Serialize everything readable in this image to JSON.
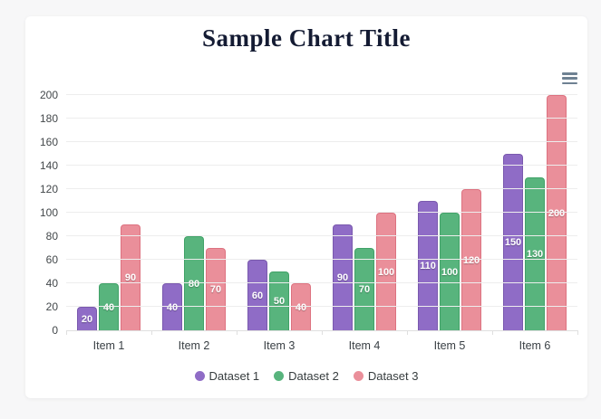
{
  "page": {
    "background_color": "#f7f7f8",
    "card_background_color": "#ffffff"
  },
  "toolbar": {
    "menu_icon": "hamburger-menu-icon",
    "menu_icon_color": "#6e8192"
  },
  "chart_data": {
    "type": "bar",
    "title": "Sample Chart Title",
    "title_color": "#141b33",
    "categories": [
      "Item 1",
      "Item 2",
      "Item 3",
      "Item 4",
      "Item 5",
      "Item 6"
    ],
    "series": [
      {
        "name": "Dataset 1",
        "color": "#8f6cc6",
        "border_color": "#7a59ae",
        "values": [
          20,
          40,
          60,
          90,
          110,
          150
        ]
      },
      {
        "name": "Dataset 2",
        "color": "#58b47d",
        "border_color": "#41a268",
        "values": [
          40,
          80,
          50,
          70,
          100,
          130
        ]
      },
      {
        "name": "Dataset 3",
        "color": "#ea8f9a",
        "border_color": "#dd7280",
        "values": [
          90,
          70,
          40,
          100,
          120,
          200
        ]
      }
    ],
    "ylim": [
      0,
      200
    ],
    "yticks": [
      0,
      20,
      40,
      60,
      80,
      100,
      120,
      140,
      160,
      180,
      200
    ],
    "grid": true,
    "grid_color": "#ededed",
    "data_labels": true,
    "data_label_color": "#ffffff",
    "legend_position": "bottom",
    "xlabel": "",
    "ylabel": ""
  }
}
